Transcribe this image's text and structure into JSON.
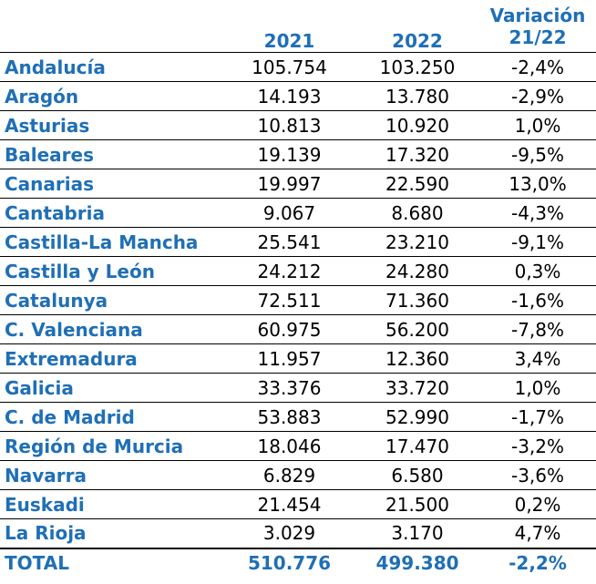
{
  "headers": {
    "region": "",
    "y2021": "2021",
    "y2022": "2022",
    "variation_line1": "Variación",
    "variation_line2": "21/22"
  },
  "rows": [
    {
      "region": "Andalucía",
      "y2021": "105.754",
      "y2022": "103.250",
      "variation": "-2,4%"
    },
    {
      "region": "Aragón",
      "y2021": "14.193",
      "y2022": "13.780",
      "variation": "-2,9%"
    },
    {
      "region": "Asturias",
      "y2021": "10.813",
      "y2022": "10.920",
      "variation": "1,0%"
    },
    {
      "region": "Baleares",
      "y2021": "19.139",
      "y2022": "17.320",
      "variation": "-9,5%"
    },
    {
      "region": "Canarias",
      "y2021": "19.997",
      "y2022": "22.590",
      "variation": "13,0%"
    },
    {
      "region": "Cantabria",
      "y2021": "9.067",
      "y2022": "8.680",
      "variation": "-4,3%"
    },
    {
      "region": "Castilla-La Mancha",
      "y2021": "25.541",
      "y2022": "23.210",
      "variation": "-9,1%"
    },
    {
      "region": "Castilla y León",
      "y2021": "24.212",
      "y2022": "24.280",
      "variation": "0,3%"
    },
    {
      "region": "Catalunya",
      "y2021": "72.511",
      "y2022": "71.360",
      "variation": "-1,6%"
    },
    {
      "region": "C. Valenciana",
      "y2021": "60.975",
      "y2022": "56.200",
      "variation": "-7,8%"
    },
    {
      "region": "Extremadura",
      "y2021": "11.957",
      "y2022": "12.360",
      "variation": "3,4%"
    },
    {
      "region": "Galicia",
      "y2021": "33.376",
      "y2022": "33.720",
      "variation": "1,0%"
    },
    {
      "region": "C. de Madrid",
      "y2021": "53.883",
      "y2022": "52.990",
      "variation": "-1,7%"
    },
    {
      "region": "Región de Murcia",
      "y2021": "18.046",
      "y2022": "17.470",
      "variation": "-3,2%"
    },
    {
      "region": "Navarra",
      "y2021": "6.829",
      "y2022": "6.580",
      "variation": "-3,6%"
    },
    {
      "region": "Euskadi",
      "y2021": "21.454",
      "y2022": "21.500",
      "variation": "0,2%"
    },
    {
      "region": "La Rioja",
      "y2021": "3.029",
      "y2022": "3.170",
      "variation": "4,7%"
    }
  ],
  "total": {
    "region": "TOTAL",
    "y2021": "510.776",
    "y2022": "499.380",
    "variation": "-2,2%"
  },
  "colors": {
    "accent": "#1f6fb5",
    "text": "#000000",
    "rule": "#000000"
  }
}
